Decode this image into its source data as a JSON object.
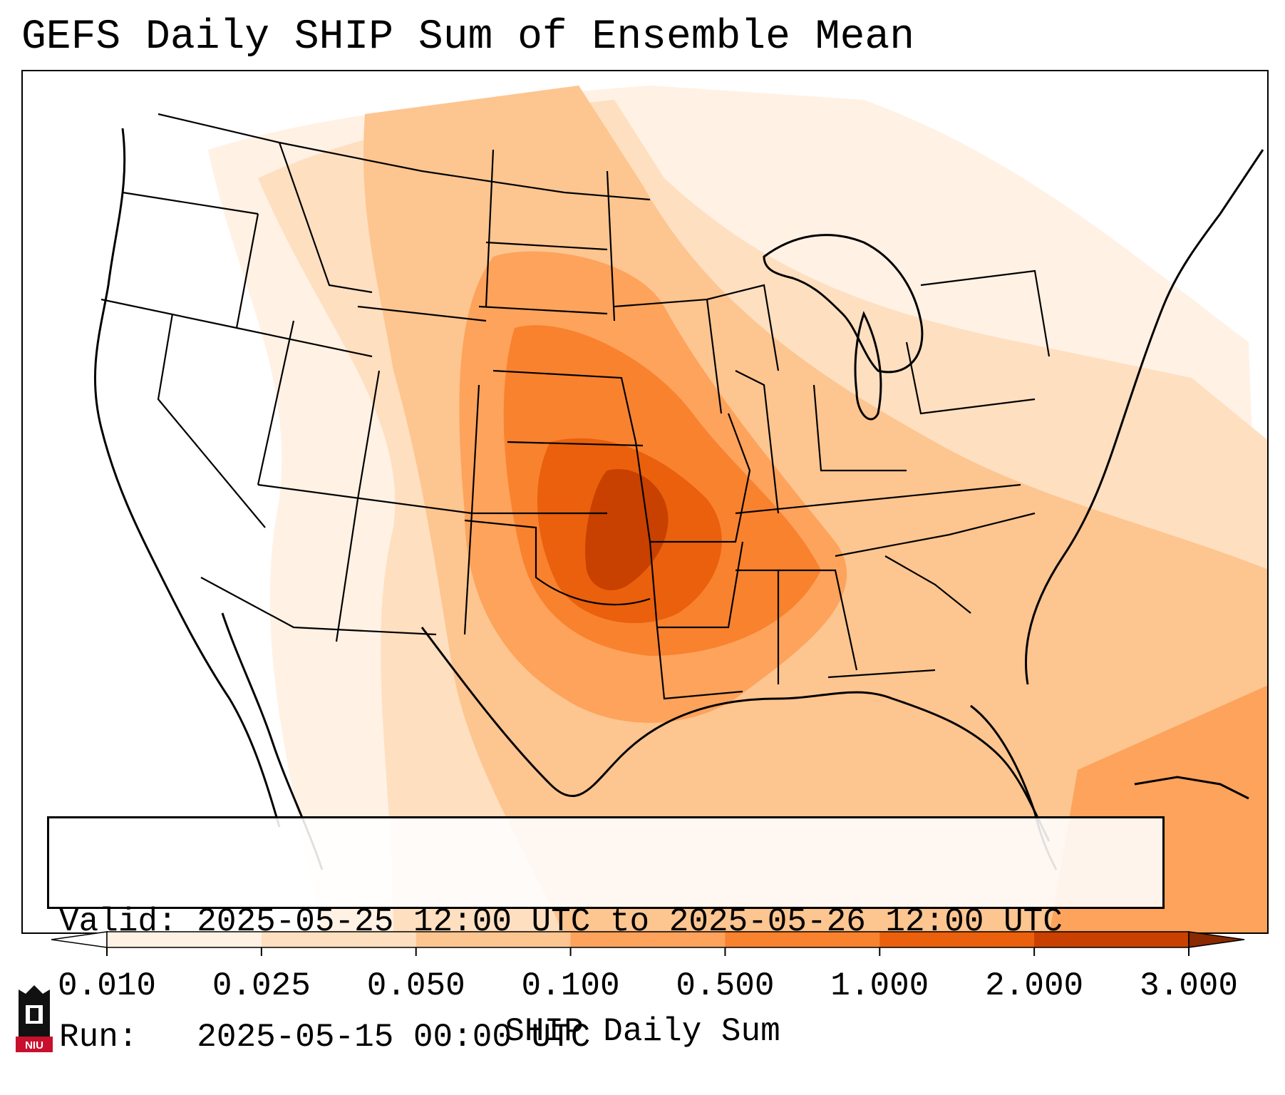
{
  "title": "GEFS Daily SHIP Sum of Ensemble Mean",
  "info": {
    "valid_label": "Valid:",
    "valid_value": "2025-05-25 12:00 UTC to 2025-05-26 12:00 UTC",
    "run_label": "Run:",
    "run_value": "2025-05-15 00:00 UTC"
  },
  "colorbar": {
    "label": "SHIP Daily Sum",
    "ticks": [
      "0.010",
      "0.025",
      "0.050",
      "0.100",
      "0.500",
      "1.000",
      "2.000",
      "3.000"
    ],
    "colors": [
      "#fff1e4",
      "#fedfc0",
      "#fdc590",
      "#fda35c",
      "#f9822f",
      "#ea600c",
      "#c84100"
    ],
    "extend": "both"
  },
  "logo": {
    "text": "NIU",
    "colors": {
      "black": "#111111",
      "red": "#c8102e"
    }
  },
  "map": {
    "projection": "Lambert conformal (CONUS)",
    "features": [
      "coastlines",
      "state-borders",
      "country-borders"
    ]
  }
}
